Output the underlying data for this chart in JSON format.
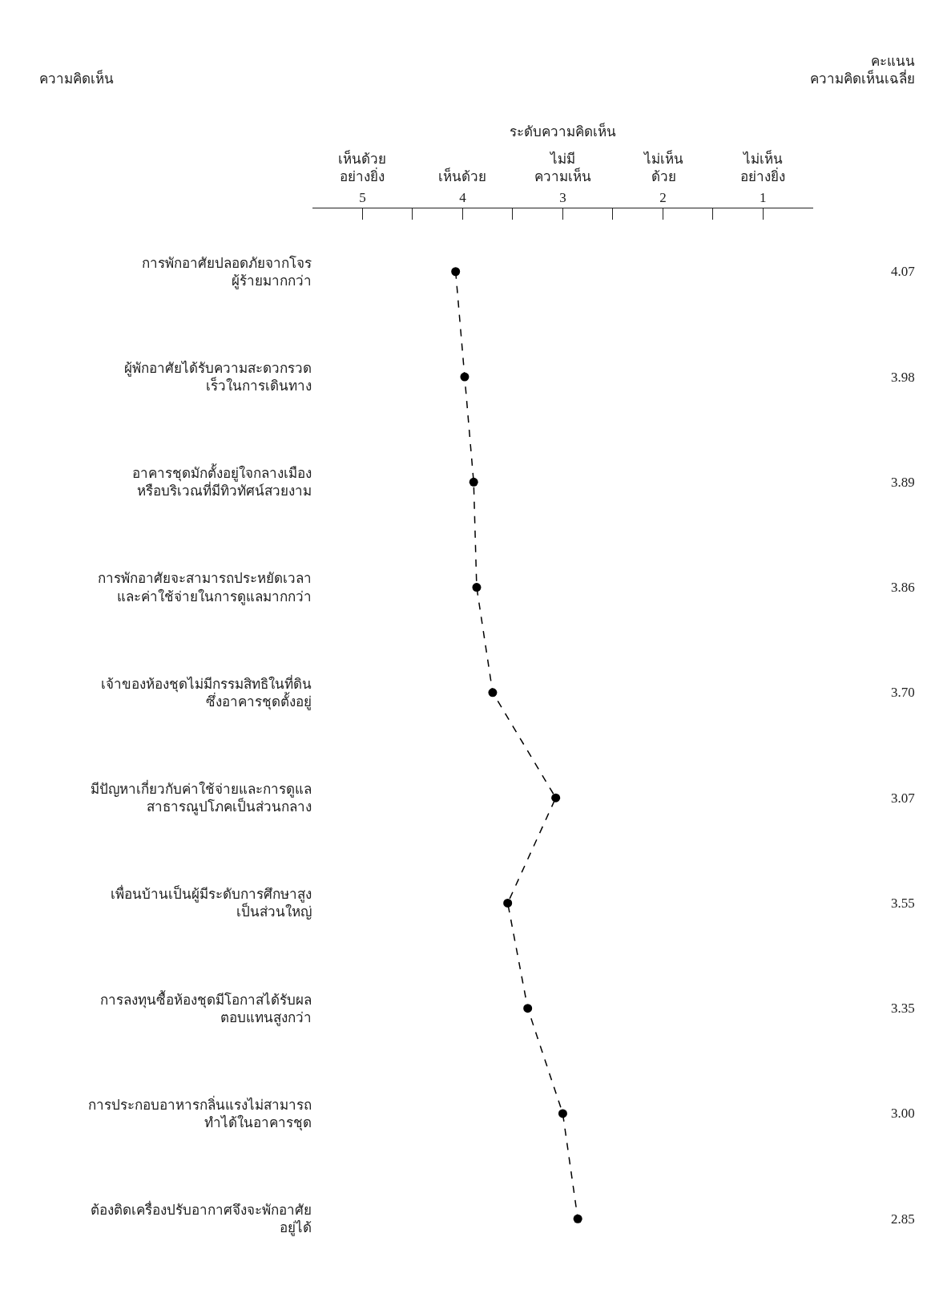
{
  "chart_data": {
    "type": "line",
    "orientation": "horizontal",
    "xlabel": "ระดับความคิดเห็น",
    "annotations": [
      "ความคิดเห็น",
      "คะแนน\nความคิดเห็นเฉลี่ย",
      "เห็นด้วย\nอย่างยิ่ง",
      "เห็นด้วย",
      "ไม่มี\nความเห็น",
      "ไม่เห็น\nด้วย",
      "ไม่เห็น\nอย่างยิ่ง"
    ],
    "categories": [
      "การพักอาศัยปลอดภัยจากโจร\nผู้ร้ายมากกว่า",
      "ผู้พักอาศัยได้รับความสะดวกรวด\nเร็วในการเดินทาง",
      "อาคารชุดมักตั้งอยู่ใจกลางเมือง\nหรือบริเวณที่มีทิวทัศน์สวยงาม",
      "การพักอาศัยจะสามารถประหยัดเวลา\nและค่าใช้จ่ายในการดูแลมากกว่า",
      "เจ้าของห้องชุดไม่มีกรรมสิทธิในที่ดิน\nซึ่งอาคารชุดตั้งอยู่",
      "มีปัญหาเกี่ยวกับค่าใช้จ่ายและการดูแล\nสาธารณูปโภคเป็นส่วนกลาง",
      "เพื่อนบ้านเป็นผู้มีระดับการศึกษาสูง\nเป็นส่วนใหญ่",
      "การลงทุนซื้อห้องชุดมีโอกาสได้รับผล\nตอบแทนสูงกว่า",
      "การประกอบอาหารกลิ่นแรงไม่สามารถ\nทำได้ในอาคารชุด",
      "ต้องติดเครื่องปรับอากาศจึงจะพักอาศัย\nอยู่ได้"
    ],
    "values": [
      4.07,
      3.98,
      3.89,
      3.86,
      3.7,
      3.07,
      3.55,
      3.35,
      3.0,
      2.85
    ],
    "value_labels": [
      "4.07",
      "3.98",
      "3.89",
      "3.86",
      "3.70",
      "3.07",
      "3.55",
      "3.35",
      "3.00",
      "2.85"
    ],
    "color": "#000000",
    "marker": "circle",
    "line_style": "dashed",
    "grid": false,
    "xlim": [
      5.5,
      0.5
    ],
    "xticks": [
      5,
      {
        "value": 4.5,
        "label": null
      },
      4,
      {
        "value": 3.5,
        "label": null
      },
      3,
      {
        "value": 2.5,
        "label": null
      },
      2,
      {
        "value": 1.5,
        "label": null
      },
      1
    ]
  }
}
